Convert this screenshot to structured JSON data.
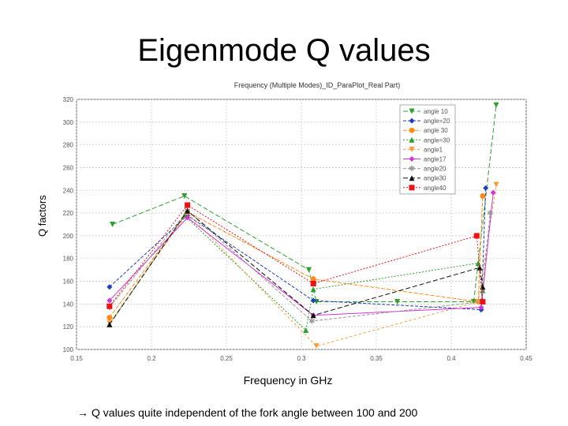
{
  "slide": {
    "title": "Eigenmode Q values",
    "note": "Q values quite independent of the fork angle between 100 and 200",
    "note_arrow": "→"
  },
  "chart_data": {
    "type": "line",
    "title": "Frequency (Multiple Modes)_ID_ParaPlot_Real Part)",
    "xlabel": "Frequency in GHz",
    "ylabel": "Q factors",
    "xlim": [
      0.15,
      0.45
    ],
    "ylim": [
      100,
      320
    ],
    "xticks": [
      "0.15",
      "0.2",
      "0.25",
      "0.3",
      "0.35",
      "0.4",
      "0.45"
    ],
    "yticks": [
      "100",
      "120",
      "140",
      "160",
      "180",
      "200",
      "220",
      "240",
      "260",
      "280",
      "300",
      "320"
    ],
    "grid": true,
    "legend_position": "top-right",
    "series": [
      {
        "name": "angle 10",
        "color": "#2ca02c",
        "marker": "triangle-down",
        "dash": "6,3",
        "x": [
          0.174,
          0.222,
          0.305,
          0.31,
          0.364,
          0.415,
          0.43
        ],
        "y": [
          210,
          235,
          170,
          142,
          142,
          142,
          315
        ]
      },
      {
        "name": "angle=20",
        "color": "#1f3fbf",
        "marker": "diamond",
        "dash": "4,2",
        "x": [
          0.172,
          0.224,
          0.308,
          0.42,
          0.423
        ],
        "y": [
          155,
          218,
          143,
          135,
          242
        ]
      },
      {
        "name": "angle 30",
        "color": "#ff8c1a",
        "marker": "circle",
        "dash": "5,2",
        "x": [
          0.172,
          0.224,
          0.308,
          0.418,
          0.421
        ],
        "y": [
          128,
          221,
          162,
          142,
          235
        ]
      },
      {
        "name": "angle=30",
        "color": "#29a329",
        "marker": "triangle-up",
        "dash": "2,2",
        "x": [
          0.172,
          0.222,
          0.303,
          0.308,
          0.418,
          0.421
        ],
        "y": [
          122,
          218,
          117,
          153,
          176,
          152
        ]
      },
      {
        "name": "angle1",
        "color": "#ff9933",
        "marker": "triangle-down",
        "dash": "3,3",
        "x": [
          0.172,
          0.224,
          0.31,
          0.418,
          0.43
        ],
        "y": [
          123,
          220,
          103,
          142,
          245
        ]
      },
      {
        "name": "angle17",
        "color": "#d633d6",
        "marker": "diamond",
        "dash": "",
        "x": [
          0.172,
          0.224,
          0.308,
          0.42,
          0.428
        ],
        "y": [
          143,
          216,
          130,
          137,
          238
        ]
      },
      {
        "name": "angle20",
        "color": "#999999",
        "marker": "star",
        "dash": "4,2",
        "x": [
          0.172,
          0.224,
          0.307,
          0.42,
          0.426
        ],
        "y": [
          137,
          222,
          125,
          142,
          220
        ]
      },
      {
        "name": "angle30",
        "color": "#111111",
        "marker": "triangle-up",
        "dash": "6,3",
        "x": [
          0.172,
          0.224,
          0.308,
          0.419,
          0.421
        ],
        "y": [
          122,
          222,
          130,
          172,
          155
        ]
      },
      {
        "name": "angle40",
        "color": "#ee1111",
        "marker": "square",
        "dash": "2,2",
        "x": [
          0.172,
          0.224,
          0.308,
          0.417,
          0.421
        ],
        "y": [
          138,
          227,
          158,
          200,
          142
        ]
      }
    ]
  }
}
